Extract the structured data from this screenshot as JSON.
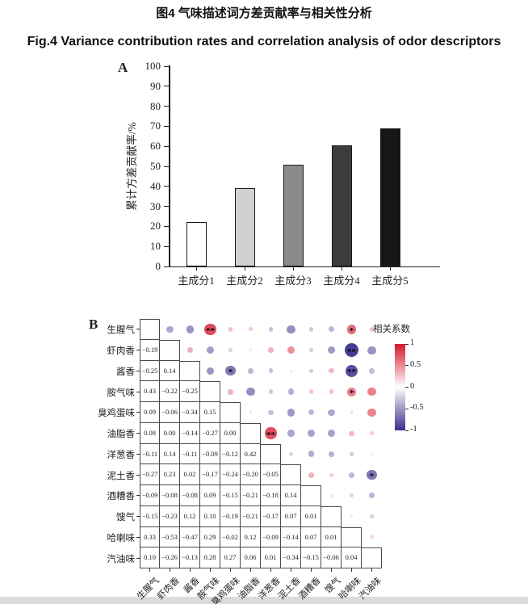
{
  "page": {
    "title_zh": "图4 气味描述词方差贡献率与相关性分析",
    "title_en": "Fig.4 Variance contribution rates and correlation analysis of odor descriptors"
  },
  "panels": {
    "a_label": "A",
    "b_label": "B"
  },
  "chart_data": [
    {
      "type": "bar",
      "panel": "A",
      "title": "",
      "categories": [
        "主成分1",
        "主成分2",
        "主成分3",
        "主成分4",
        "主成分5"
      ],
      "values": [
        22,
        39,
        51,
        60.5,
        69
      ],
      "bar_colors": [
        "#ffffff",
        "#d2d1d1",
        "#8b8b8b",
        "#3d3d3d",
        "#161616"
      ],
      "xlabel": "",
      "ylabel": "累计方差贡献率/%",
      "ylim": [
        0,
        100
      ],
      "yticks": [
        0,
        10,
        20,
        30,
        40,
        50,
        60,
        70,
        80,
        90,
        100
      ],
      "grid": false
    },
    {
      "type": "heatmap",
      "panel": "B",
      "subtype": "correlation-matrix-lower-values-upper-bubbles",
      "labels": [
        "生腥气",
        "虾肉香",
        "酱香",
        "胺气味",
        "臭鸡蛋味",
        "油脂香",
        "洋葱香",
        "泥土香",
        "酒糟香",
        "馊气",
        "哈喇味",
        "汽油味"
      ],
      "lower_triangle": [
        [],
        [
          -0.19
        ],
        [
          -0.25,
          0.14
        ],
        [
          0.43,
          -0.22,
          -0.25
        ],
        [
          0.09,
          -0.06,
          -0.34,
          0.15
        ],
        [
          0.08,
          0.0,
          -0.14,
          -0.27,
          0.0
        ],
        [
          -0.11,
          0.14,
          -0.11,
          -0.09,
          -0.12,
          0.42
        ],
        [
          -0.27,
          0.23,
          0.02,
          -0.17,
          -0.24,
          -0.2,
          -0.05
        ],
        [
          -0.09,
          -0.08,
          -0.08,
          0.09,
          -0.15,
          -0.21,
          -0.18,
          0.14
        ],
        [
          -0.15,
          -0.23,
          0.12,
          0.1,
          -0.19,
          -0.21,
          -0.17,
          0.07,
          0.01
        ],
        [
          0.33,
          -0.53,
          -0.47,
          0.29,
          -0.02,
          0.12,
          -0.09,
          -0.14,
          0.07,
          0.01
        ],
        [
          0.1,
          -0.26,
          -0.13,
          0.28,
          0.27,
          0.06,
          0.01,
          -0.34,
          -0.15,
          -0.06,
          0.04
        ]
      ],
      "significance": [
        {
          "row": 0,
          "col": 3,
          "stars": "**"
        },
        {
          "row": 0,
          "col": 10,
          "stars": "*"
        },
        {
          "row": 1,
          "col": 10,
          "stars": "**"
        },
        {
          "row": 2,
          "col": 4,
          "stars": "*"
        },
        {
          "row": 2,
          "col": 10,
          "stars": "**"
        },
        {
          "row": 3,
          "col": 10,
          "stars": "*"
        },
        {
          "row": 5,
          "col": 6,
          "stars": "**"
        },
        {
          "row": 7,
          "col": 11,
          "stars": "*"
        }
      ],
      "legend": {
        "title": "相关系数",
        "ticks": [
          "1",
          "0.5",
          "0",
          "-0.5",
          "-1"
        ],
        "pos_color": "#d6192e",
        "neg_color": "#37308e"
      }
    }
  ]
}
